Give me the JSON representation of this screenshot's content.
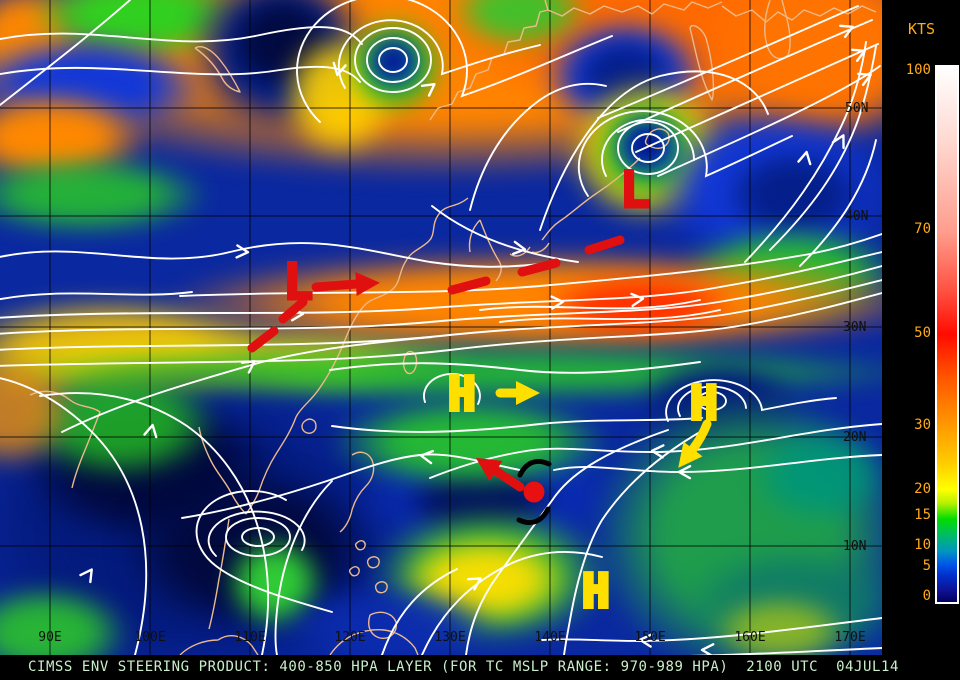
{
  "product": {
    "caption": "CIMSS ENV STEERING PRODUCT: 400-850 HPA LAYER (FOR TC MSLP RANGE: 970-989 HPA)  2100 UTC  04JUL14"
  },
  "colorbar": {
    "unit": "KTS",
    "tick_labels": [
      "100",
      "70",
      "50",
      "30",
      "20",
      "15",
      "10",
      "5",
      "0"
    ]
  },
  "grid": {
    "lon_labels": [
      "90E",
      "100E",
      "110E",
      "120E",
      "130E",
      "140E",
      "150E",
      "160E",
      "170E"
    ],
    "lat_labels": [
      "50N",
      "40N",
      "30N",
      "20N",
      "10N"
    ]
  },
  "annotations": {
    "lows": [
      {
        "label": "L",
        "location": "near Japan / Sea of Okhotsk low"
      },
      {
        "label": "L",
        "location": "eastern China low"
      }
    ],
    "highs": [
      {
        "label": "H",
        "location": "subtropical ridge west cell"
      },
      {
        "label": "H",
        "location": "subtropical ridge east cell"
      },
      {
        "label": "H",
        "location": "low-latitude ridge"
      }
    ],
    "tc_symbol": "tropical-cyclone",
    "track": "red dashed guidance track with arrows"
  },
  "colors": {
    "low_marker": "#e01010",
    "high_marker": "#ffdf00",
    "streamline": "#ffffff",
    "tick_text": "#ffaa18",
    "caption_text": "#c9eec9",
    "coastline": "#ecb98a",
    "grid_line": "#000000"
  }
}
